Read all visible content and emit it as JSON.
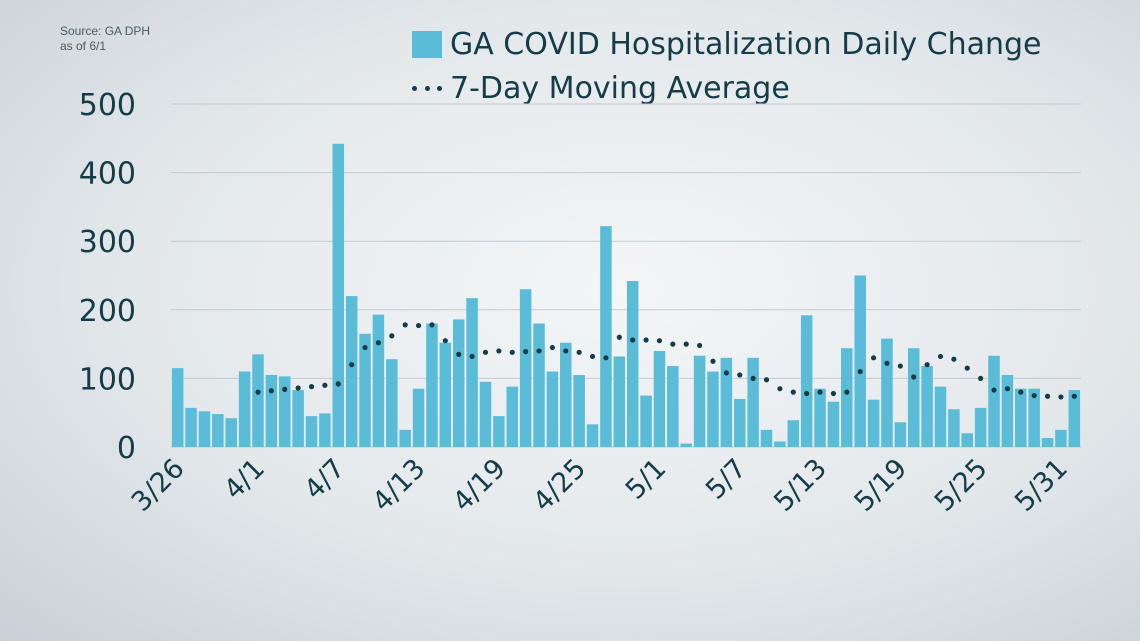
{
  "source": {
    "line1": "Source: GA DPH",
    "line2": "as of 6/1"
  },
  "legend": {
    "bars_label": "GA COVID Hospitalization Daily Change",
    "line_label": "7-Day Moving Average"
  },
  "colors": {
    "bar": "#5bbcd8",
    "line": "#153c47",
    "text": "#153c47",
    "grid": "#c2ccd1"
  },
  "chart_data": {
    "type": "bar",
    "x_start": "3/26",
    "x_end": "6/1",
    "x_tick_labels": [
      "3/26",
      "4/1",
      "4/7",
      "4/13",
      "4/19",
      "4/25",
      "5/1",
      "5/7",
      "5/13",
      "5/19",
      "5/25",
      "5/31"
    ],
    "y_ticks": [
      0,
      100,
      200,
      300,
      400,
      500
    ],
    "ylim": [
      0,
      500
    ],
    "grid": true,
    "legend_position": "top",
    "series": [
      {
        "name": "GA COVID Hospitalization Daily Change",
        "type": "bar",
        "values": [
          115,
          57,
          52,
          48,
          42,
          110,
          135,
          105,
          103,
          83,
          45,
          49,
          442,
          220,
          165,
          193,
          128,
          25,
          85,
          180,
          152,
          186,
          217,
          95,
          45,
          88,
          230,
          180,
          110,
          152,
          105,
          33,
          322,
          132,
          242,
          75,
          140,
          118,
          5,
          133,
          110,
          130,
          70,
          130,
          25,
          8,
          39,
          192,
          85,
          66,
          144,
          250,
          69,
          158,
          36,
          144,
          118,
          88,
          55,
          20,
          57,
          133,
          105,
          85,
          85,
          13,
          25,
          83
        ]
      },
      {
        "name": "7-Day Moving Average",
        "type": "line",
        "start_index": 6,
        "values": [
          80,
          82,
          84,
          86,
          88,
          90,
          92,
          120,
          145,
          152,
          162,
          178,
          177,
          178,
          155,
          135,
          132,
          138,
          140,
          138,
          139,
          140,
          145,
          140,
          138,
          132,
          130,
          160,
          156,
          156,
          155,
          150,
          150,
          148,
          125,
          108,
          105,
          100,
          98,
          85,
          80,
          78,
          80,
          78,
          80,
          110,
          130,
          122,
          118,
          102,
          120,
          132,
          128,
          115,
          100,
          83,
          85,
          80,
          75,
          74,
          73,
          74
        ]
      }
    ]
  }
}
